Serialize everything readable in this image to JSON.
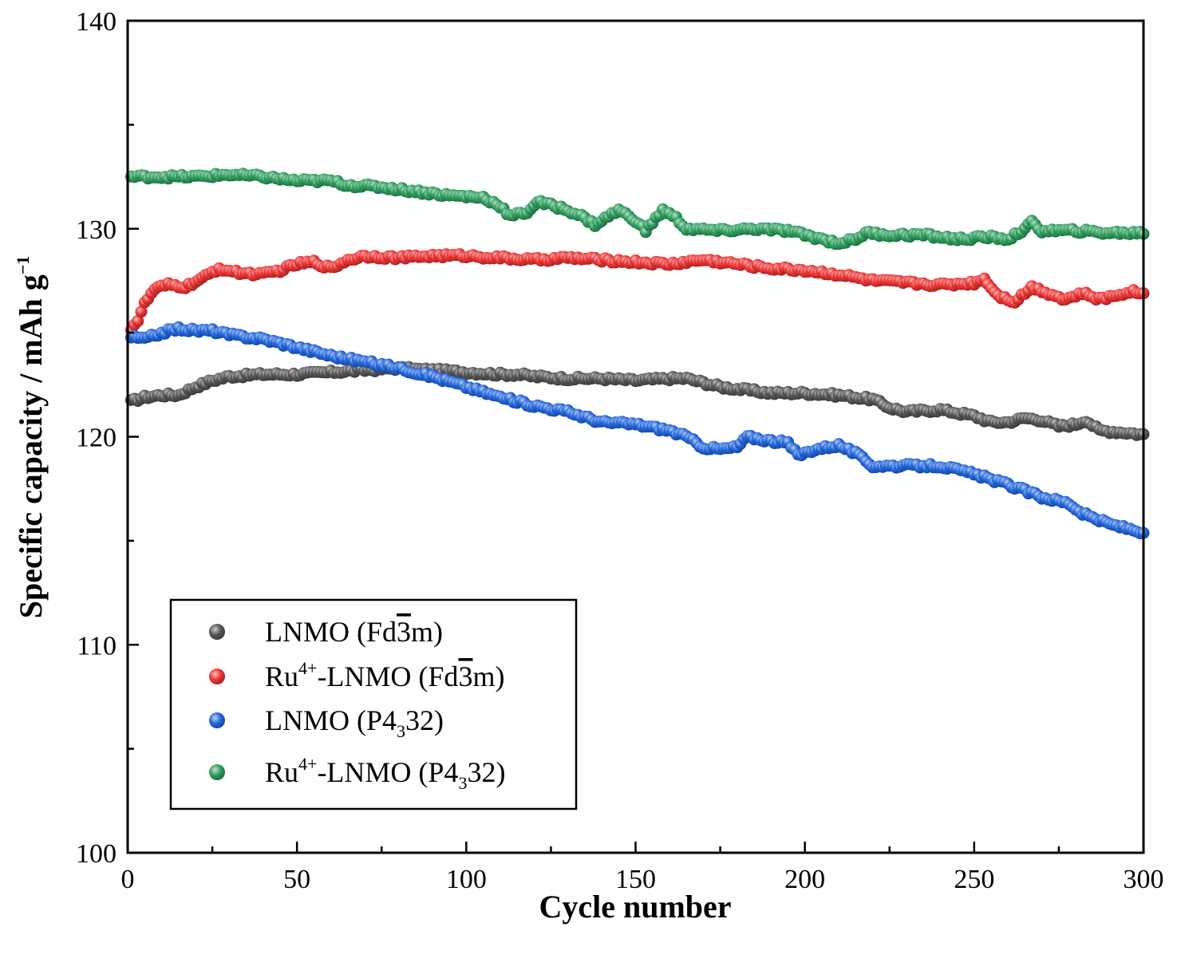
{
  "chart_data": {
    "type": "scatter",
    "title": "",
    "xlabel": "Cycle number",
    "ylabel": {
      "main": "Specific capacity / mAh g",
      "sup": "−1"
    },
    "xlim": [
      0,
      300
    ],
    "ylim": [
      100,
      140
    ],
    "x_ticks": [
      "0",
      "50",
      "100",
      "150",
      "200",
      "250",
      "300"
    ],
    "y_ticks": [
      "100",
      "110",
      "120",
      "130",
      "140"
    ],
    "legend_position": "bottom-left",
    "grid": false,
    "series": [
      {
        "key": "lnmo-fd3m",
        "label": {
          "pre": "LNMO (Fd",
          "bar": "3",
          "post": "m)"
        },
        "color": "#555555",
        "anchors": [
          [
            1,
            121.7
          ],
          [
            5,
            121.9
          ],
          [
            10,
            122.0
          ],
          [
            15,
            122.0
          ],
          [
            20,
            122.4
          ],
          [
            25,
            122.7
          ],
          [
            30,
            122.9
          ],
          [
            40,
            123.0
          ],
          [
            50,
            123.0
          ],
          [
            60,
            123.1
          ],
          [
            70,
            123.2
          ],
          [
            80,
            123.3
          ],
          [
            90,
            123.2
          ],
          [
            100,
            123.1
          ],
          [
            110,
            123.0
          ],
          [
            115,
            123.0
          ],
          [
            120,
            122.9
          ],
          [
            130,
            122.8
          ],
          [
            140,
            122.8
          ],
          [
            150,
            122.7
          ],
          [
            160,
            122.8
          ],
          [
            165,
            122.8
          ],
          [
            170,
            122.6
          ],
          [
            175,
            122.4
          ],
          [
            180,
            122.3
          ],
          [
            190,
            122.1
          ],
          [
            200,
            122.1
          ],
          [
            210,
            122.0
          ],
          [
            220,
            121.8
          ],
          [
            225,
            121.4
          ],
          [
            230,
            121.2
          ],
          [
            240,
            121.3
          ],
          [
            250,
            121.0
          ],
          [
            255,
            120.7
          ],
          [
            260,
            120.7
          ],
          [
            265,
            120.9
          ],
          [
            270,
            120.8
          ],
          [
            275,
            120.5
          ],
          [
            280,
            120.6
          ],
          [
            283,
            120.8
          ],
          [
            287,
            120.3
          ],
          [
            295,
            120.2
          ],
          [
            300,
            120.1
          ]
        ]
      },
      {
        "key": "ru-lnmo-fd3m",
        "label": {
          "pre": "Ru",
          "sup": "4+",
          "mid": "-LNMO (Fd",
          "bar": "3",
          "post": "m)"
        },
        "color": "#ee3333",
        "anchors": [
          [
            1,
            125.2
          ],
          [
            3,
            125.6
          ],
          [
            5,
            126.4
          ],
          [
            8,
            127.1
          ],
          [
            12,
            127.3
          ],
          [
            17,
            127.2
          ],
          [
            22,
            127.6
          ],
          [
            27,
            128.1
          ],
          [
            32,
            127.9
          ],
          [
            40,
            127.8
          ],
          [
            45,
            128.0
          ],
          [
            50,
            128.3
          ],
          [
            55,
            128.4
          ],
          [
            60,
            128.1
          ],
          [
            65,
            128.5
          ],
          [
            70,
            128.7
          ],
          [
            80,
            128.6
          ],
          [
            90,
            128.7
          ],
          [
            100,
            128.7
          ],
          [
            110,
            128.6
          ],
          [
            120,
            128.5
          ],
          [
            130,
            128.6
          ],
          [
            140,
            128.5
          ],
          [
            150,
            128.4
          ],
          [
            160,
            128.3
          ],
          [
            170,
            128.5
          ],
          [
            180,
            128.3
          ],
          [
            190,
            128.1
          ],
          [
            200,
            128.0
          ],
          [
            210,
            127.8
          ],
          [
            220,
            127.5
          ],
          [
            230,
            127.4
          ],
          [
            240,
            127.3
          ],
          [
            250,
            127.4
          ],
          [
            253,
            127.6
          ],
          [
            257,
            126.8
          ],
          [
            262,
            126.5
          ],
          [
            267,
            127.2
          ],
          [
            272,
            126.9
          ],
          [
            277,
            126.6
          ],
          [
            282,
            126.9
          ],
          [
            287,
            126.6
          ],
          [
            292,
            126.8
          ],
          [
            296,
            127.0
          ],
          [
            300,
            126.9
          ]
        ]
      },
      {
        "key": "lnmo-p4332",
        "label": {
          "pre": "LNMO (P4",
          "sub": "3",
          "post": "32)"
        },
        "color": "#2266dd",
        "anchors": [
          [
            1,
            124.8
          ],
          [
            5,
            124.7
          ],
          [
            10,
            125.0
          ],
          [
            15,
            125.2
          ],
          [
            20,
            125.1
          ],
          [
            25,
            125.1
          ],
          [
            30,
            124.9
          ],
          [
            40,
            124.7
          ],
          [
            50,
            124.3
          ],
          [
            60,
            123.9
          ],
          [
            70,
            123.6
          ],
          [
            80,
            123.3
          ],
          [
            90,
            122.9
          ],
          [
            100,
            122.4
          ],
          [
            110,
            121.9
          ],
          [
            120,
            121.5
          ],
          [
            130,
            121.2
          ],
          [
            140,
            120.7
          ],
          [
            150,
            120.6
          ],
          [
            160,
            120.3
          ],
          [
            165,
            120.0
          ],
          [
            170,
            119.5
          ],
          [
            175,
            119.4
          ],
          [
            180,
            119.5
          ],
          [
            183,
            120.0
          ],
          [
            190,
            119.8
          ],
          [
            195,
            119.7
          ],
          [
            198,
            119.1
          ],
          [
            203,
            119.4
          ],
          [
            210,
            119.6
          ],
          [
            215,
            119.2
          ],
          [
            220,
            118.6
          ],
          [
            230,
            118.6
          ],
          [
            240,
            118.6
          ],
          [
            250,
            118.2
          ],
          [
            260,
            117.7
          ],
          [
            270,
            117.1
          ],
          [
            278,
            116.8
          ],
          [
            282,
            116.3
          ],
          [
            290,
            115.8
          ],
          [
            300,
            115.4
          ]
        ]
      },
      {
        "key": "ru-lnmo-p4332",
        "label": {
          "pre": "Ru",
          "sup": "4+",
          "mid": "-LNMO (P4",
          "sub": "3",
          "post": "32)"
        },
        "color": "#2e9e5e",
        "anchors": [
          [
            1,
            132.5
          ],
          [
            10,
            132.5
          ],
          [
            20,
            132.5
          ],
          [
            30,
            132.6
          ],
          [
            40,
            132.5
          ],
          [
            50,
            132.3
          ],
          [
            60,
            132.3
          ],
          [
            65,
            132.1
          ],
          [
            75,
            132.0
          ],
          [
            85,
            131.8
          ],
          [
            95,
            131.6
          ],
          [
            105,
            131.5
          ],
          [
            110,
            131.1
          ],
          [
            113,
            130.6
          ],
          [
            118,
            130.8
          ],
          [
            121,
            131.3
          ],
          [
            128,
            131.0
          ],
          [
            133,
            130.7
          ],
          [
            138,
            130.2
          ],
          [
            142,
            130.6
          ],
          [
            145,
            130.9
          ],
          [
            150,
            130.4
          ],
          [
            153,
            129.9
          ],
          [
            158,
            130.9
          ],
          [
            162,
            130.5
          ],
          [
            165,
            130.0
          ],
          [
            175,
            129.9
          ],
          [
            185,
            130.0
          ],
          [
            195,
            129.9
          ],
          [
            205,
            129.5
          ],
          [
            210,
            129.3
          ],
          [
            215,
            129.5
          ],
          [
            218,
            129.8
          ],
          [
            225,
            129.7
          ],
          [
            235,
            129.7
          ],
          [
            245,
            129.5
          ],
          [
            255,
            129.6
          ],
          [
            260,
            129.5
          ],
          [
            265,
            130.0
          ],
          [
            267,
            130.3
          ],
          [
            270,
            129.9
          ],
          [
            280,
            129.9
          ],
          [
            290,
            129.8
          ],
          [
            300,
            129.8
          ]
        ]
      }
    ]
  }
}
